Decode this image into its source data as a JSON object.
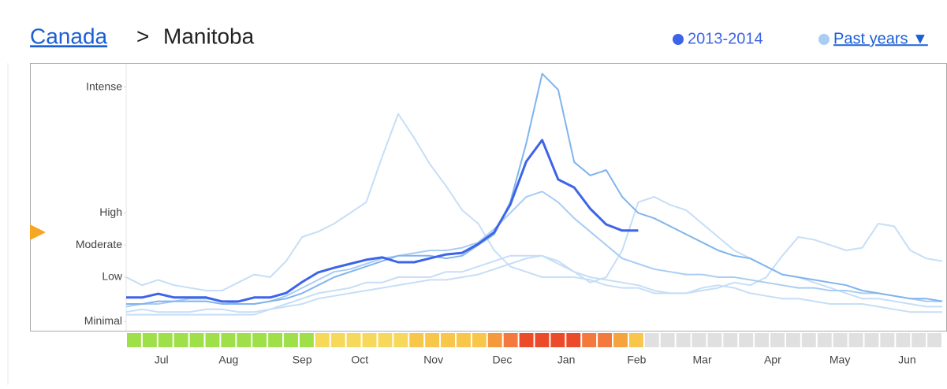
{
  "chart_data": {
    "type": "line",
    "title_link": "Canada",
    "title_separator": ">",
    "title": "Manitoba",
    "legend": [
      {
        "label": "2013-2014",
        "color": "#3d64e8"
      },
      {
        "label": "Past years ▼",
        "color": "#a9cdf3"
      }
    ],
    "x": [
      0,
      1,
      2,
      3,
      4,
      5,
      6,
      7,
      8,
      9,
      10,
      11,
      12,
      13,
      14,
      15,
      16,
      17,
      18,
      19,
      20,
      21,
      22,
      23,
      24,
      25,
      26,
      27,
      28,
      29,
      30,
      31,
      32,
      33,
      34,
      35,
      36,
      37,
      38,
      39,
      40,
      41,
      42,
      43,
      44,
      45,
      46,
      47,
      48,
      49,
      50,
      51
    ],
    "xlim": [
      0,
      51
    ],
    "xticks": [
      {
        "value": 2.2,
        "label": "Jul"
      },
      {
        "value": 6.4,
        "label": "Aug"
      },
      {
        "value": 11,
        "label": "Sep"
      },
      {
        "value": 14.6,
        "label": "Oct"
      },
      {
        "value": 19.2,
        "label": "Nov"
      },
      {
        "value": 23.5,
        "label": "Dec"
      },
      {
        "value": 27.5,
        "label": "Jan"
      },
      {
        "value": 31.9,
        "label": "Feb"
      },
      {
        "value": 36,
        "label": "Mar"
      },
      {
        "value": 40.4,
        "label": "Apr"
      },
      {
        "value": 44.6,
        "label": "May"
      },
      {
        "value": 48.8,
        "label": "Jun"
      }
    ],
    "ylim": [
      0,
      100
    ],
    "yticks": [
      {
        "value": 3.5,
        "label": "Minimal"
      },
      {
        "value": 20,
        "label": "Low"
      },
      {
        "value": 32,
        "label": "Moderate"
      },
      {
        "value": 44,
        "label": "High"
      },
      {
        "value": 91,
        "label": "Intense"
      }
    ],
    "series": [
      {
        "color": "#c6def7",
        "values": [
          20,
          17,
          19,
          17,
          16,
          15,
          15,
          18,
          21,
          20,
          26,
          35,
          37,
          40,
          44,
          48,
          65,
          81,
          72,
          62,
          54,
          45,
          40,
          30,
          24,
          22,
          20,
          20,
          20,
          19,
          17,
          16,
          16,
          14,
          14,
          14,
          15,
          16,
          18,
          17,
          20,
          28,
          35,
          34,
          32,
          30,
          31,
          40,
          39,
          30,
          27,
          26
        ]
      },
      {
        "color": "#c6def7",
        "values": [
          6,
          6,
          6,
          6,
          6,
          6,
          6,
          6,
          6,
          8,
          10,
          12,
          14,
          15,
          16,
          18,
          18,
          20,
          20,
          20,
          22,
          22,
          24,
          26,
          28,
          28,
          28,
          26,
          22,
          18,
          20,
          30,
          48,
          50,
          47,
          45,
          40,
          35,
          30,
          27,
          24,
          21,
          20,
          18,
          16,
          14,
          12,
          12,
          11,
          10,
          9,
          9
        ]
      },
      {
        "color": "#c6def7",
        "values": [
          7,
          8,
          7,
          7,
          7,
          8,
          8,
          7,
          7,
          8,
          9,
          10,
          12,
          13,
          14,
          15,
          16,
          17,
          18,
          19,
          19,
          20,
          21,
          23,
          25,
          27,
          28,
          25,
          22,
          20,
          19,
          18,
          17,
          15,
          14,
          14,
          16,
          17,
          16,
          14,
          13,
          12,
          12,
          11,
          10,
          10,
          10,
          9,
          8,
          7,
          7,
          7
        ]
      },
      {
        "color": "#a9cdf3",
        "values": [
          9,
          10,
          10,
          11,
          12,
          12,
          11,
          10,
          10,
          11,
          13,
          16,
          19,
          22,
          23,
          25,
          27,
          28,
          29,
          30,
          30,
          31,
          33,
          38,
          44,
          50,
          52,
          48,
          42,
          37,
          32,
          27,
          25,
          23,
          22,
          21,
          21,
          20,
          20,
          19,
          18,
          17,
          16,
          16,
          15,
          15,
          14,
          14,
          13,
          12,
          11,
          11
        ]
      },
      {
        "color": "#80b4ee",
        "values": [
          10,
          10,
          11,
          11,
          11,
          11,
          10,
          10,
          10,
          11,
          12,
          14,
          17,
          20,
          22,
          24,
          26,
          28,
          28,
          28,
          27,
          28,
          32,
          36,
          48,
          70,
          96,
          90,
          63,
          58,
          60,
          50,
          44,
          42,
          39,
          36,
          33,
          30,
          28,
          27,
          24,
          21,
          20,
          19,
          18,
          17,
          15,
          14,
          13,
          12,
          12,
          11
        ]
      },
      {
        "name": "2013-2014",
        "color": "#3d64e8",
        "values": [
          12.4,
          12.4,
          13.8,
          12.4,
          12.4,
          12.4,
          10.9,
          10.9,
          12.4,
          12.4,
          14.1,
          18.2,
          21.8,
          23.5,
          25,
          26.5,
          27.4,
          25.6,
          25.6,
          27.1,
          28.5,
          29.1,
          32.4,
          36.8,
          47.1,
          63.2,
          71.2,
          56.5,
          53.5,
          45.6,
          39.7,
          37.4,
          37.4,
          null,
          null,
          null,
          null,
          null,
          null,
          null,
          null,
          null,
          null,
          null,
          null,
          null,
          null,
          null,
          null,
          null,
          null,
          null
        ]
      }
    ],
    "week_colors": [
      "#9fe04a",
      "#9fe04a",
      "#9fe04a",
      "#9fe04a",
      "#9fe04a",
      "#9fe04a",
      "#9fe04a",
      "#9fe04a",
      "#9fe04a",
      "#9fe04a",
      "#9fe04a",
      "#9fe04a",
      "#f6d95a",
      "#f6d95a",
      "#f6d95a",
      "#f6d95a",
      "#f6d95a",
      "#f6d95a",
      "#f8c64a",
      "#f8c64a",
      "#f8c64a",
      "#f8c64a",
      "#f8c64a",
      "#f49a3c",
      "#f4793c",
      "#ec4b2a",
      "#ec4b2a",
      "#ec4b2a",
      "#ec4b2a",
      "#f4793c",
      "#f4793c",
      "#f5a33d",
      "#f8c64a",
      "#e0e0e0",
      "#e0e0e0",
      "#e0e0e0",
      "#e0e0e0",
      "#e0e0e0",
      "#e0e0e0",
      "#e0e0e0",
      "#e0e0e0",
      "#e0e0e0",
      "#e0e0e0",
      "#e0e0e0",
      "#e0e0e0",
      "#e0e0e0",
      "#e0e0e0",
      "#e0e0e0",
      "#e0e0e0",
      "#e0e0e0",
      "#e0e0e0",
      "#e0e0e0"
    ]
  }
}
